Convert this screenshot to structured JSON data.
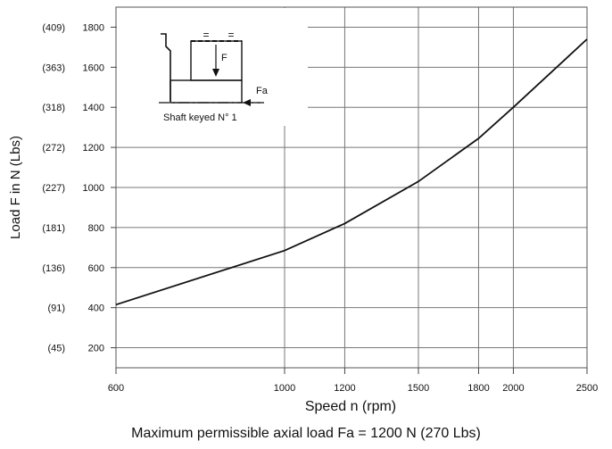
{
  "chart_data": {
    "type": "line",
    "xlabel": "Speed n (rpm)",
    "ylabel": "Load F in N (Lbs)",
    "x_scale": "log",
    "xlim": [
      600,
      2500
    ],
    "ylim": [
      100,
      1900
    ],
    "grid": true,
    "x_ticks": [
      600,
      1000,
      1200,
      1500,
      1800,
      2000,
      2500
    ],
    "y_ticks": [
      {
        "value": 200,
        "label": "200",
        "lbs": "(45)"
      },
      {
        "value": 400,
        "label": "400",
        "lbs": "(91)"
      },
      {
        "value": 600,
        "label": "600",
        "lbs": "(136)"
      },
      {
        "value": 800,
        "label": "800",
        "lbs": "(181)"
      },
      {
        "value": 1000,
        "label": "1000",
        "lbs": "(227)"
      },
      {
        "value": 1200,
        "label": "1200",
        "lbs": "(272)"
      },
      {
        "value": 1400,
        "label": "1400",
        "lbs": "(318)"
      },
      {
        "value": 1600,
        "label": "1600",
        "lbs": "(363)"
      },
      {
        "value": 1800,
        "label": "1800",
        "lbs": "(409)"
      }
    ],
    "series": [
      {
        "x": [
          600,
          1000,
          1200,
          1500,
          1800,
          2000,
          2500
        ],
        "y": [
          415,
          685,
          820,
          1030,
          1245,
          1400,
          1740
        ]
      }
    ]
  },
  "inset": {
    "caption": "Shaft keyed N° 1",
    "force_label": "F",
    "axial_label": "Fa",
    "equal_mark": "="
  },
  "footer": "Maximum permissible axial load Fa = 1200 N (270 Lbs)"
}
